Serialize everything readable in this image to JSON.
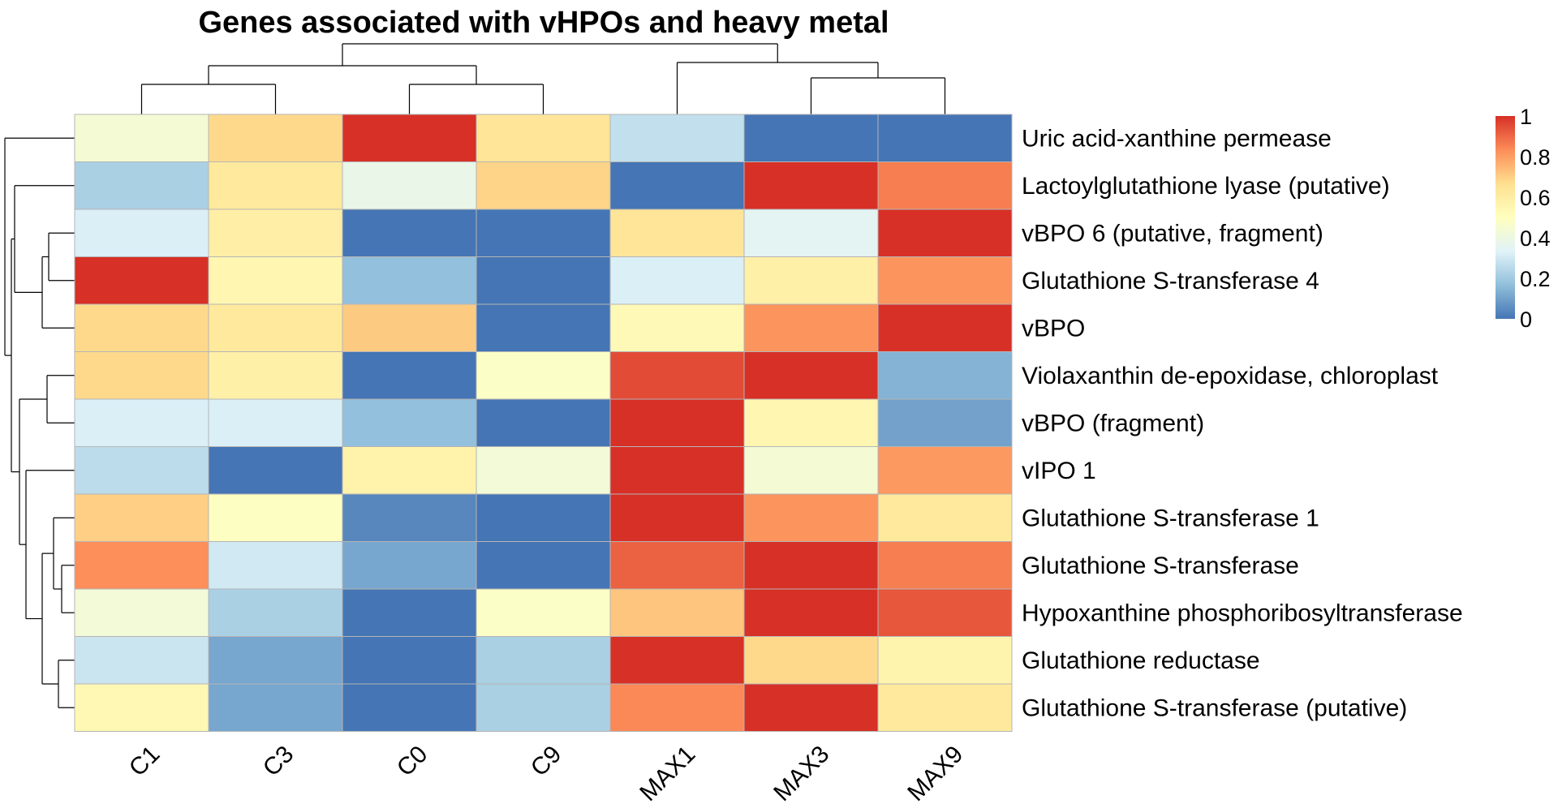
{
  "chart_data": {
    "type": "heatmap",
    "title": "Genes associated with vHPOs and heavy metal",
    "columns": [
      "C1",
      "C3",
      "C0",
      "C9",
      "MAX1",
      "MAX3",
      "MAX9"
    ],
    "rows": [
      "Uric acid-xanthine permease",
      "Lactoylglutathione lyase (putative)",
      "vBPO 6 (putative, fragment)",
      "Glutathione S-transferase 4",
      "vBPO",
      "Violaxanthin de-epoxidase, chloroplast",
      "vBPO (fragment)",
      "vIPO 1",
      "Glutathione S-transferase 1",
      "Glutathione S-transferase",
      "Hypoxanthine phosphoribosyltransferase",
      "Glutathione reductase",
      "Glutathione S-transferase (putative)"
    ],
    "values": [
      [
        0.44,
        0.68,
        1.0,
        0.64,
        0.27,
        0.0,
        0.0
      ],
      [
        0.22,
        0.62,
        0.38,
        0.69,
        0.0,
        1.0,
        0.86
      ],
      [
        0.32,
        0.59,
        0.0,
        0.0,
        0.64,
        0.35,
        1.0
      ],
      [
        1.0,
        0.55,
        0.17,
        0.0,
        0.32,
        0.58,
        0.82
      ],
      [
        0.68,
        0.62,
        0.71,
        0.0,
        0.53,
        0.82,
        1.0
      ],
      [
        0.68,
        0.58,
        0.0,
        0.48,
        0.95,
        1.0,
        0.14
      ],
      [
        0.32,
        0.32,
        0.17,
        0.0,
        1.0,
        0.55,
        0.1
      ],
      [
        0.26,
        0.0,
        0.57,
        0.43,
        1.0,
        0.44,
        0.81
      ],
      [
        0.7,
        0.49,
        0.04,
        0.0,
        1.0,
        0.82,
        0.62
      ],
      [
        0.83,
        0.3,
        0.11,
        0.0,
        0.91,
        1.0,
        0.86
      ],
      [
        0.43,
        0.22,
        0.0,
        0.48,
        0.72,
        1.0,
        0.93
      ],
      [
        0.29,
        0.11,
        0.0,
        0.22,
        1.0,
        0.68,
        0.56
      ],
      [
        0.54,
        0.11,
        0.0,
        0.22,
        0.84,
        1.0,
        0.62
      ]
    ],
    "color_scale": {
      "min": 0,
      "max": 1,
      "stops": [
        "#4575B4",
        "#91BFDB",
        "#E0F3F8",
        "#FFFFBF",
        "#FEE090",
        "#FC8D59",
        "#D73027"
      ]
    },
    "legend": {
      "position": "right",
      "ticks": [
        "1",
        "0.8",
        "0.6",
        "0.4",
        "0.2",
        "0"
      ]
    },
    "column_dendrogram": true,
    "row_dendrogram": true,
    "grid": false
  }
}
